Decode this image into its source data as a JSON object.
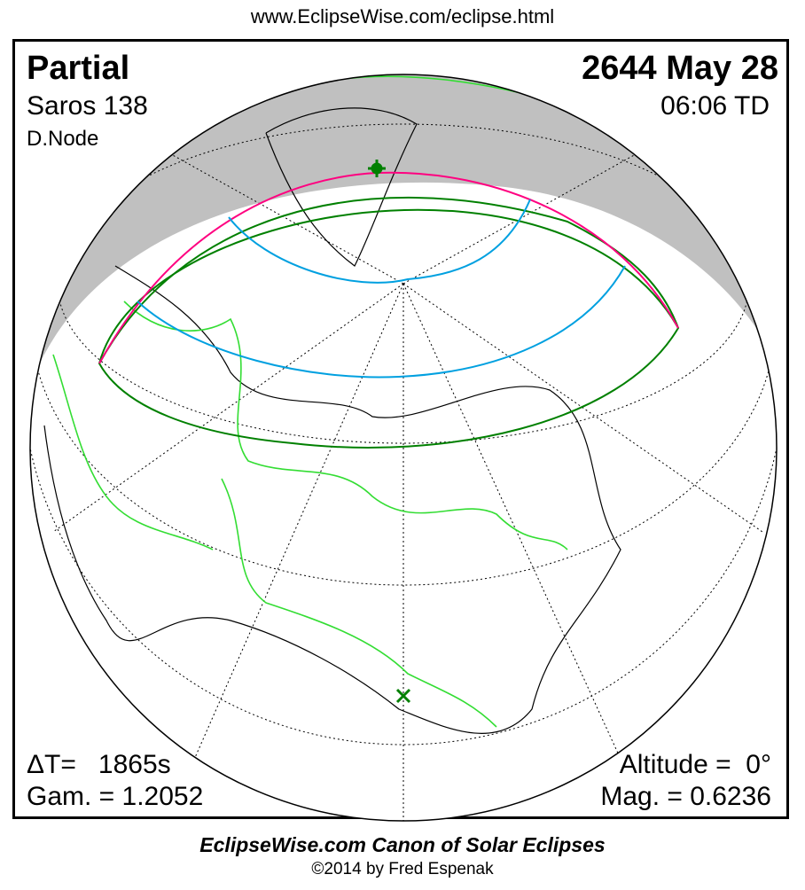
{
  "header_url": "www.EclipseWise.com/eclipse.html",
  "eclipse": {
    "type": "Partial",
    "date": "2644 May 28",
    "saros": "Saros 138",
    "time": "06:06 TD",
    "node": "D.Node",
    "delta_t": "ΔT=   1865s",
    "gamma": "Gam. = 1.2052",
    "altitude": "Altitude =  0°",
    "magnitude": "Mag. = 0.6236"
  },
  "footer": {
    "title": "EclipseWise.com Canon of Solar Eclipses",
    "copyright": "©2014 by Fred Espenak"
  },
  "colors": {
    "night_shade": "#c0c0c0",
    "eclipse_limits": "#008000",
    "max_eclipse_line": "#ff0080",
    "magnitude_contours": "#00a0e0",
    "borders": "#33dd33",
    "coastlines": "#000000"
  },
  "markers": [
    "greatest-eclipse-star",
    "sub-solar-cross"
  ]
}
